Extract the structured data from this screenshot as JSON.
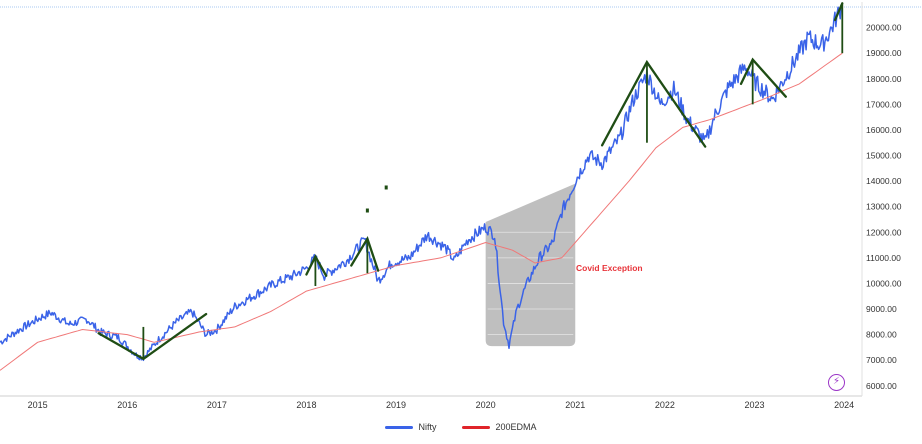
{
  "chart_data": {
    "type": "line",
    "title": "",
    "xlabel": "",
    "ylabel": "",
    "ylim": [
      5600,
      21000
    ],
    "x_tick_labels": [
      "2015",
      "2016",
      "2017",
      "2018",
      "2019",
      "2020",
      "2021",
      "2022",
      "2023",
      "2024"
    ],
    "y_tick_labels": [
      "6000.00",
      "7000.00",
      "8000.00",
      "9000.00",
      "10000.00",
      "11000.00",
      "12000.00",
      "13000.00",
      "14000.00",
      "15000.00",
      "16000.00",
      "17000.00",
      "18000.00",
      "19000.00",
      "20000.00"
    ],
    "y_ticks": [
      6000,
      7000,
      8000,
      9000,
      10000,
      11000,
      12000,
      13000,
      14000,
      15000,
      16000,
      17000,
      18000,
      19000,
      20000
    ],
    "grid": false,
    "legend_position": "bottom-center",
    "series": [
      {
        "name": "Nifty",
        "color": "#3a63e8",
        "points": [
          [
            2014.58,
            7700
          ],
          [
            2014.8,
            8200
          ],
          [
            2015.05,
            8700
          ],
          [
            2015.15,
            8850
          ],
          [
            2015.35,
            8400
          ],
          [
            2015.55,
            8600
          ],
          [
            2015.7,
            8100
          ],
          [
            2015.9,
            7900
          ],
          [
            2016.1,
            7200
          ],
          [
            2016.18,
            7100
          ],
          [
            2016.35,
            7800
          ],
          [
            2016.55,
            8500
          ],
          [
            2016.72,
            8900
          ],
          [
            2016.88,
            8000
          ],
          [
            2017.0,
            8200
          ],
          [
            2017.2,
            9100
          ],
          [
            2017.45,
            9600
          ],
          [
            2017.65,
            10000
          ],
          [
            2017.85,
            10300
          ],
          [
            2018.0,
            10600
          ],
          [
            2018.1,
            11000
          ],
          [
            2018.2,
            10300
          ],
          [
            2018.45,
            10900
          ],
          [
            2018.65,
            11700
          ],
          [
            2018.8,
            10100
          ],
          [
            2018.95,
            10800
          ],
          [
            2019.15,
            11000
          ],
          [
            2019.35,
            11900
          ],
          [
            2019.55,
            11400
          ],
          [
            2019.65,
            10900
          ],
          [
            2019.8,
            11700
          ],
          [
            2020.0,
            12200
          ],
          [
            2020.1,
            11900
          ],
          [
            2020.2,
            8500
          ],
          [
            2020.26,
            7600
          ],
          [
            2020.35,
            9000
          ],
          [
            2020.45,
            9900
          ],
          [
            2020.6,
            11000
          ],
          [
            2020.75,
            11600
          ],
          [
            2020.85,
            12800
          ],
          [
            2021.0,
            14000
          ],
          [
            2021.15,
            15000
          ],
          [
            2021.3,
            14700
          ],
          [
            2021.5,
            15700
          ],
          [
            2021.65,
            17200
          ],
          [
            2021.8,
            18200
          ],
          [
            2021.95,
            17000
          ],
          [
            2022.1,
            17600
          ],
          [
            2022.25,
            16400
          ],
          [
            2022.45,
            15500
          ],
          [
            2022.55,
            16500
          ],
          [
            2022.7,
            17600
          ],
          [
            2022.9,
            18500
          ],
          [
            2023.0,
            17900
          ],
          [
            2023.2,
            17200
          ],
          [
            2023.4,
            18400
          ],
          [
            2023.6,
            19600
          ],
          [
            2023.75,
            19300
          ],
          [
            2023.85,
            19900
          ],
          [
            2023.98,
            20900
          ]
        ]
      },
      {
        "name": "200EDMA",
        "color": "#f07878",
        "points": [
          [
            2014.58,
            6600
          ],
          [
            2015.0,
            7700
          ],
          [
            2015.5,
            8200
          ],
          [
            2016.0,
            8000
          ],
          [
            2016.3,
            7700
          ],
          [
            2016.8,
            8100
          ],
          [
            2017.2,
            8300
          ],
          [
            2017.6,
            8900
          ],
          [
            2018.0,
            9700
          ],
          [
            2018.5,
            10200
          ],
          [
            2019.0,
            10700
          ],
          [
            2019.5,
            11000
          ],
          [
            2020.0,
            11600
          ],
          [
            2020.3,
            11300
          ],
          [
            2020.55,
            10800
          ],
          [
            2020.85,
            11000
          ],
          [
            2021.0,
            11600
          ],
          [
            2021.3,
            12800
          ],
          [
            2021.6,
            14000
          ],
          [
            2021.9,
            15300
          ],
          [
            2022.2,
            16100
          ],
          [
            2022.5,
            16400
          ],
          [
            2022.8,
            16800
          ],
          [
            2023.1,
            17200
          ],
          [
            2023.5,
            17800
          ],
          [
            2023.98,
            19000
          ]
        ]
      }
    ],
    "annotations": [
      {
        "text": "Covid Exception",
        "color": "#e8343a"
      }
    ]
  },
  "legend": {
    "items": [
      {
        "label": "Nifty",
        "color": "#3a63e8"
      },
      {
        "label": "200EDMA",
        "color": "#e0242a"
      }
    ]
  },
  "overlays": {
    "trendline_color": "#1f4d14",
    "shaded_region_color": "#b4b4b4"
  }
}
